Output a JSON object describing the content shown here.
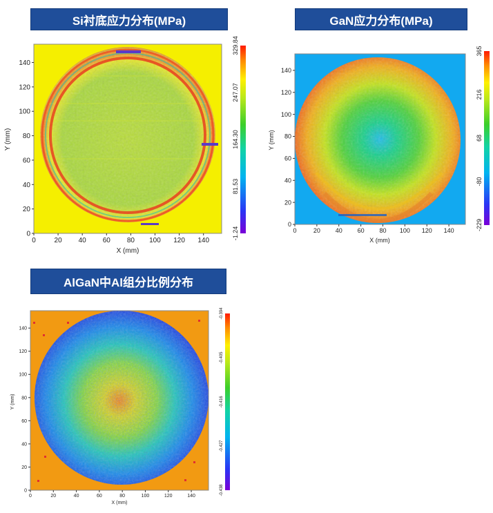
{
  "chart_data": [
    {
      "type": "heatmap",
      "title": "Si衬底应力分布(MPa)",
      "xlabel": "X (mm)",
      "ylabel": "Y (mm)",
      "xlim": [
        0,
        155
      ],
      "ylim": [
        0,
        155
      ],
      "xticks": [
        "0",
        "20",
        "40",
        "60",
        "80",
        "100",
        "120",
        "140"
      ],
      "yticks": [
        "0",
        "20",
        "40",
        "60",
        "80",
        "100",
        "120",
        "140"
      ],
      "colorbar": {
        "min": -1.24,
        "max": 329.84,
        "ticks": [
          "329.84",
          "247.07",
          "164.30",
          "81.53",
          "-1.24"
        ]
      },
      "pattern": "edge-ring",
      "background_color": "#f5ef00"
    },
    {
      "type": "heatmap",
      "title": "GaN应力分布(MPa)",
      "xlabel": "X (mm)",
      "ylabel": "Y (mm)",
      "xlim": [
        0,
        155
      ],
      "ylim": [
        0,
        155
      ],
      "xticks": [
        "0",
        "20",
        "40",
        "60",
        "80",
        "100",
        "120",
        "140"
      ],
      "yticks": [
        "0",
        "20",
        "40",
        "60",
        "80",
        "100",
        "120",
        "140"
      ],
      "colorbar": {
        "min": -229,
        "max": 365,
        "ticks": [
          "365",
          "216",
          "68",
          "-80",
          "-229"
        ]
      },
      "pattern": "radial-low-center",
      "background_color": "#12a9f0"
    },
    {
      "type": "heatmap",
      "title": "AlGaN中Al组分比例分布",
      "xlabel": "X (mm)",
      "ylabel": "Y (mm)",
      "xlim": [
        0,
        155
      ],
      "ylim": [
        0,
        155
      ],
      "xticks": [
        "0",
        "20",
        "40",
        "60",
        "80",
        "100",
        "120",
        "140"
      ],
      "yticks": [
        "0",
        "20",
        "40",
        "60",
        "80",
        "100",
        "120",
        "140"
      ],
      "colorbar": {
        "min": -0.438,
        "max": -0.394,
        "ticks": [
          "-0.394",
          "-0.405",
          "-0.416",
          "-0.427",
          "-0.438"
        ]
      },
      "pattern": "radial-high-center-noisy",
      "background_color": "#f29a12"
    }
  ]
}
